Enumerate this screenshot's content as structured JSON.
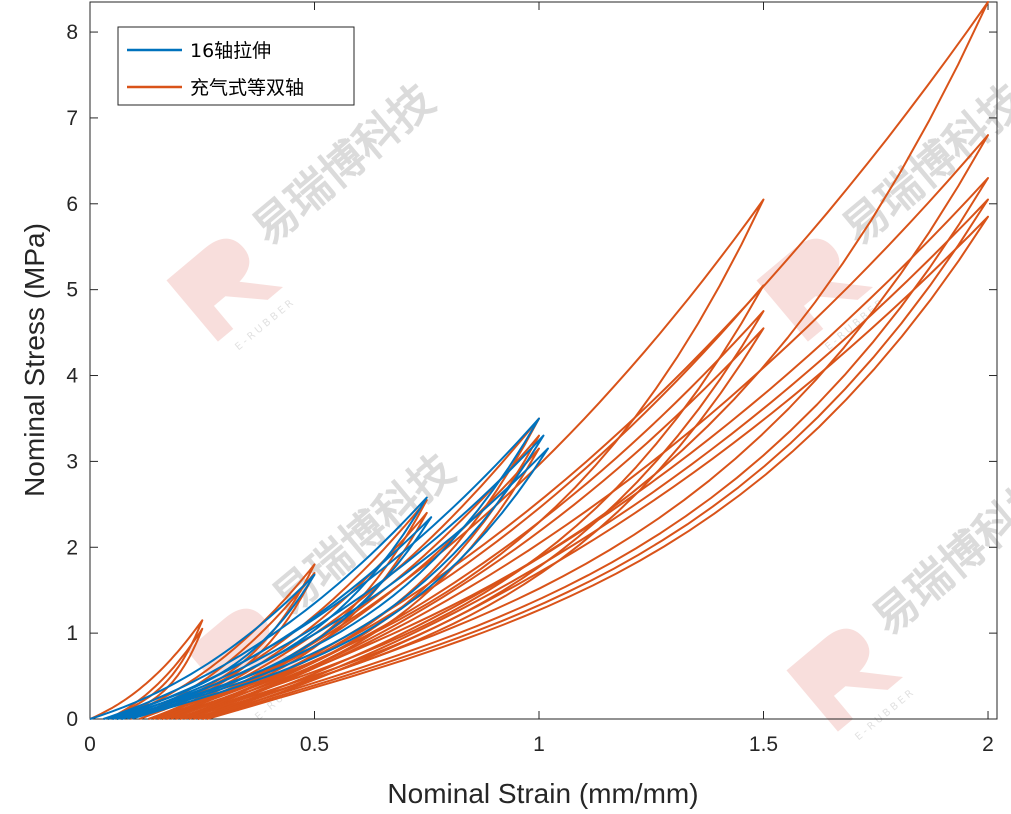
{
  "chart_data": {
    "type": "line",
    "title": "",
    "xlabel": "Nominal Strain (mm/mm)",
    "ylabel": "Nominal Stress (MPa)",
    "xlim": [
      0,
      2.02
    ],
    "ylim": [
      0,
      8.35
    ],
    "xticks": [
      0,
      0.5,
      1,
      1.5,
      2
    ],
    "xtick_labels": [
      "0",
      "0.5",
      "1",
      "1.5",
      "2"
    ],
    "yticks": [
      0,
      1,
      2,
      3,
      4,
      5,
      6,
      7,
      8
    ],
    "ytick_labels": [
      "0",
      "1",
      "2",
      "3",
      "4",
      "5",
      "6",
      "7",
      "8"
    ],
    "grid": false,
    "legend_position": "top-left",
    "series": [
      {
        "name": "16轴拉伸",
        "color": "#0072BD",
        "cycles": [
          {
            "start": 0.0,
            "peak_x": 0.5,
            "peak_y": 1.68,
            "end": 0.03
          },
          {
            "start": 0.03,
            "peak_x": 0.75,
            "peak_y": 2.58,
            "end": 0.05
          },
          {
            "start": 0.04,
            "peak_x": 0.76,
            "peak_y": 2.35,
            "end": 0.06
          },
          {
            "start": 0.05,
            "peak_x": 1.0,
            "peak_y": 3.5,
            "end": 0.07
          },
          {
            "start": 0.06,
            "peak_x": 1.01,
            "peak_y": 3.3,
            "end": 0.08
          },
          {
            "start": 0.07,
            "peak_x": 1.02,
            "peak_y": 3.15,
            "end": 0.09
          }
        ]
      },
      {
        "name": "充气式等双轴",
        "color": "#D95319",
        "cycles": [
          {
            "start": 0.0,
            "peak_x": 0.25,
            "peak_y": 1.15,
            "end": 0.04
          },
          {
            "start": 0.04,
            "peak_x": 0.25,
            "peak_y": 1.05,
            "end": 0.06
          },
          {
            "start": 0.06,
            "peak_x": 0.5,
            "peak_y": 1.8,
            "end": 0.09
          },
          {
            "start": 0.09,
            "peak_x": 0.5,
            "peak_y": 1.7,
            "end": 0.11
          },
          {
            "start": 0.11,
            "peak_x": 0.75,
            "peak_y": 2.55,
            "end": 0.13
          },
          {
            "start": 0.13,
            "peak_x": 0.75,
            "peak_y": 2.4,
            "end": 0.14
          },
          {
            "start": 0.14,
            "peak_x": 1.0,
            "peak_y": 3.5,
            "end": 0.15
          },
          {
            "start": 0.15,
            "peak_x": 1.0,
            "peak_y": 3.3,
            "end": 0.16
          },
          {
            "start": 0.16,
            "peak_x": 1.0,
            "peak_y": 3.15,
            "end": 0.17
          },
          {
            "start": 0.17,
            "peak_x": 1.5,
            "peak_y": 6.05,
            "end": 0.18
          },
          {
            "start": 0.18,
            "peak_x": 1.5,
            "peak_y": 5.05,
            "end": 0.19
          },
          {
            "start": 0.19,
            "peak_x": 1.5,
            "peak_y": 4.75,
            "end": 0.2
          },
          {
            "start": 0.2,
            "peak_x": 1.5,
            "peak_y": 4.55,
            "end": 0.21
          },
          {
            "start": 0.21,
            "peak_x": 2.0,
            "peak_y": 8.35,
            "end": 0.22
          },
          {
            "start": 0.22,
            "peak_x": 2.0,
            "peak_y": 6.8,
            "end": 0.23
          },
          {
            "start": 0.23,
            "peak_x": 2.0,
            "peak_y": 6.3,
            "end": 0.24
          },
          {
            "start": 0.24,
            "peak_x": 2.0,
            "peak_y": 6.05,
            "end": 0.25
          },
          {
            "start": 0.25,
            "peak_x": 2.0,
            "peak_y": 5.85,
            "end": 0.26
          }
        ]
      }
    ]
  },
  "watermark": {
    "text": "易瑞博科技",
    "subtext": "E-RUBBER",
    "color": "#c8c8c8",
    "accent": "#f2c4bf"
  }
}
